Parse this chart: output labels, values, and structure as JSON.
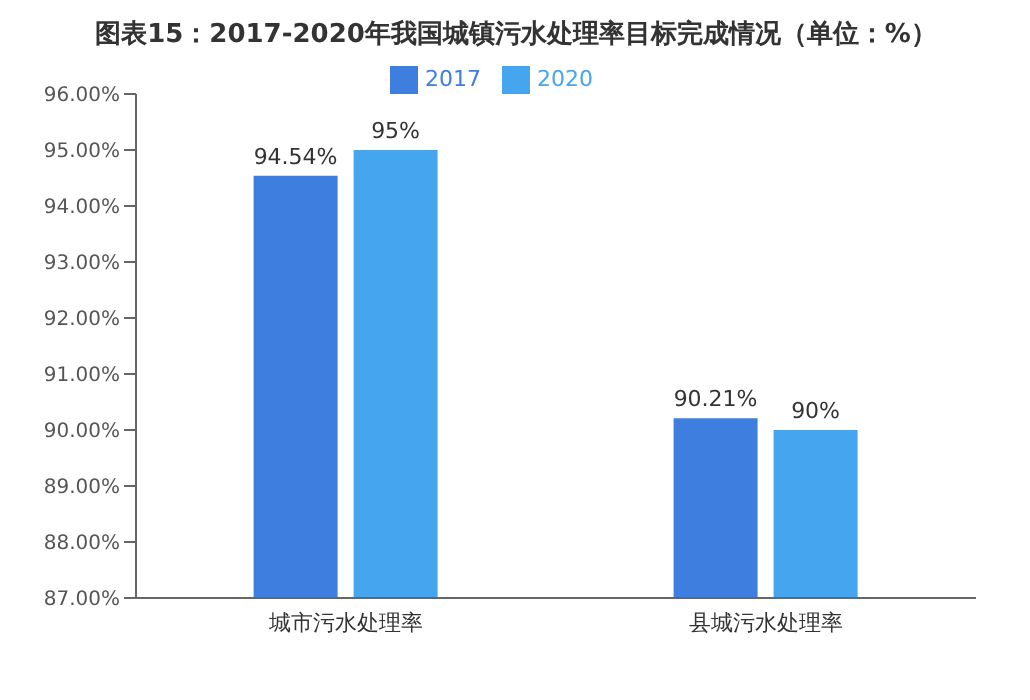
{
  "chart_data": {
    "type": "bar",
    "title": "图表15：2017-2020年我国城镇污水处理率目标完成情况（单位：%）",
    "categories": [
      "城市污水处理率",
      "县城污水处理率"
    ],
    "series": [
      {
        "name": "2017",
        "color": "#3d7ede",
        "values": [
          94.54,
          90.21
        ],
        "value_labels": [
          "94.54%",
          "90.21%"
        ]
      },
      {
        "name": "2020",
        "color": "#45a5ee",
        "values": [
          95,
          90
        ],
        "value_labels": [
          "95%",
          "90%"
        ]
      }
    ],
    "ylim": [
      87,
      96
    ],
    "yticks": [
      {
        "value": 87,
        "label": "87.00%"
      },
      {
        "value": 88,
        "label": "88.00%"
      },
      {
        "value": 89,
        "label": "89.00%"
      },
      {
        "value": 90,
        "label": "90.00%"
      },
      {
        "value": 91,
        "label": "91.00%"
      },
      {
        "value": 92,
        "label": "92.00%"
      },
      {
        "value": 93,
        "label": "93.00%"
      },
      {
        "value": 94,
        "label": "94.00%"
      },
      {
        "value": 95,
        "label": "95.00%"
      },
      {
        "value": 96,
        "label": "96.00%"
      }
    ],
    "legend": "top",
    "grid": false
  }
}
